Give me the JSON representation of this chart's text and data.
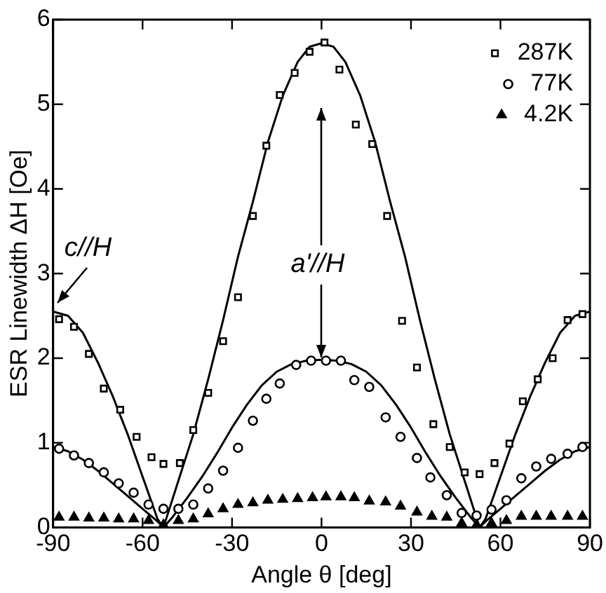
{
  "chart_data": {
    "type": "scatter",
    "xlabel": "Angle θ [deg]",
    "ylabel": "ESR Linewidth ΔH [Oe]",
    "xlim": [
      -90,
      90
    ],
    "xticks": [
      -90,
      -60,
      -30,
      0,
      30,
      60,
      90
    ],
    "ylim": [
      0,
      6
    ],
    "yticks": [
      0,
      1,
      2,
      3,
      4,
      5,
      6
    ],
    "grid": false,
    "legend": "top right",
    "annotations": [
      {
        "text": "c//H",
        "x": -90,
        "y": 2.6
      },
      {
        "text": "a'//H",
        "x": 0,
        "y": 1.98
      }
    ],
    "series": [
      {
        "name": "287K",
        "type": "scatter",
        "marker": "square",
        "color": "#000000",
        "x": [
          -88,
          -83,
          -78,
          -73,
          -67.5,
          -62,
          -57,
          -53,
          -47.5,
          -43,
          -38,
          -33,
          -28,
          -23,
          -18.5,
          -14,
          -9,
          -4,
          1,
          6,
          11.5,
          17,
          22,
          27,
          32,
          37.5,
          43,
          48,
          53,
          58,
          63,
          67.5,
          72.5,
          77.5,
          82.5,
          87.5
        ],
        "values": [
          2.46,
          2.37,
          2.05,
          1.64,
          1.39,
          1.07,
          0.83,
          0.75,
          0.76,
          1.15,
          1.59,
          2.2,
          2.72,
          3.68,
          4.51,
          5.11,
          5.37,
          5.62,
          5.73,
          5.41,
          4.76,
          4.53,
          3.68,
          2.44,
          1.89,
          1.22,
          0.95,
          0.65,
          0.63,
          0.76,
          0.99,
          1.49,
          1.75,
          2.0,
          2.45,
          2.52
        ]
      },
      {
        "name": "77K",
        "type": "scatter",
        "marker": "circle",
        "color": "#000000",
        "x": [
          -88,
          -83,
          -78,
          -73,
          -68,
          -63,
          -58,
          -53,
          -48,
          -43,
          -38,
          -33,
          -28,
          -23,
          -18.5,
          -14,
          -8.5,
          -3.5,
          1.5,
          6.5,
          11,
          16,
          21.5,
          26.5,
          32,
          36.5,
          42,
          47,
          52,
          57,
          62,
          67,
          72,
          77,
          82.5,
          87.5
        ],
        "values": [
          0.93,
          0.85,
          0.76,
          0.65,
          0.52,
          0.41,
          0.27,
          0.22,
          0.22,
          0.27,
          0.46,
          0.67,
          0.94,
          1.26,
          1.52,
          1.7,
          1.92,
          1.97,
          1.97,
          1.97,
          1.74,
          1.66,
          1.3,
          1.07,
          0.82,
          0.59,
          0.38,
          0.17,
          0.14,
          0.21,
          0.32,
          0.58,
          0.72,
          0.81,
          0.87,
          0.95
        ]
      },
      {
        "name": "4.2K",
        "type": "scatter",
        "marker": "triangle",
        "color": "#000000",
        "x": [
          -88,
          -83,
          -78,
          -73,
          -68,
          -63,
          -58,
          -53,
          -48,
          -43,
          -38,
          -33,
          -28,
          -23,
          -18,
          -13,
          -8,
          -3,
          1.5,
          6.5,
          11,
          16,
          21.5,
          26.5,
          32,
          37,
          42,
          47,
          52,
          57,
          62,
          67,
          72,
          77,
          82.5,
          87.5
        ],
        "values": [
          0.12,
          0.12,
          0.11,
          0.11,
          0.1,
          0.1,
          0.08,
          0.03,
          0.08,
          0.1,
          0.16,
          0.22,
          0.27,
          0.29,
          0.32,
          0.33,
          0.34,
          0.35,
          0.36,
          0.36,
          0.35,
          0.31,
          0.3,
          0.25,
          0.18,
          0.13,
          0.12,
          0.05,
          0.03,
          0.05,
          0.08,
          0.13,
          0.13,
          0.13,
          0.13,
          0.13
        ]
      },
      {
        "type": "line",
        "marker": "none",
        "color": "#000000",
        "x": [
          -90,
          -85,
          -80,
          -75,
          -70,
          -65,
          -60,
          -55,
          -53,
          -48,
          -43,
          -38,
          -33,
          -28,
          -23,
          -18,
          -13,
          -8,
          -4,
          0,
          4,
          8,
          13,
          18,
          23,
          28,
          33,
          38,
          43,
          48,
          53,
          55,
          60,
          65,
          70,
          75,
          80,
          85,
          90
        ],
        "values": [
          2.55,
          2.5,
          2.3,
          1.95,
          1.55,
          1.1,
          0.6,
          0.1,
          0,
          0.55,
          1.1,
          1.75,
          2.45,
          3.2,
          3.85,
          4.55,
          5.1,
          5.5,
          5.68,
          5.72,
          5.68,
          5.5,
          5.1,
          4.55,
          3.85,
          3.2,
          2.45,
          1.75,
          1.1,
          0.55,
          0,
          0.1,
          0.6,
          1.1,
          1.55,
          1.95,
          2.3,
          2.5,
          2.55
        ]
      },
      {
        "type": "line",
        "marker": "none",
        "color": "#000000",
        "x": [
          -90,
          -85,
          -80,
          -75,
          -70,
          -65,
          -60,
          -55,
          -53,
          -50,
          -45,
          -40,
          -35,
          -30,
          -25,
          -20,
          -15,
          -10,
          -5,
          0,
          5,
          10,
          15,
          20,
          25,
          30,
          35,
          40,
          45,
          50,
          53,
          55,
          60,
          65,
          70,
          75,
          80,
          85,
          90
        ],
        "values": [
          0.95,
          0.9,
          0.8,
          0.67,
          0.52,
          0.37,
          0.22,
          0.07,
          0,
          0.12,
          0.35,
          0.6,
          0.88,
          1.18,
          1.45,
          1.68,
          1.84,
          1.93,
          1.97,
          1.98,
          1.97,
          1.93,
          1.84,
          1.68,
          1.45,
          1.18,
          0.88,
          0.6,
          0.35,
          0.12,
          0,
          0.07,
          0.22,
          0.37,
          0.52,
          0.67,
          0.8,
          0.9,
          0.95
        ]
      }
    ]
  }
}
